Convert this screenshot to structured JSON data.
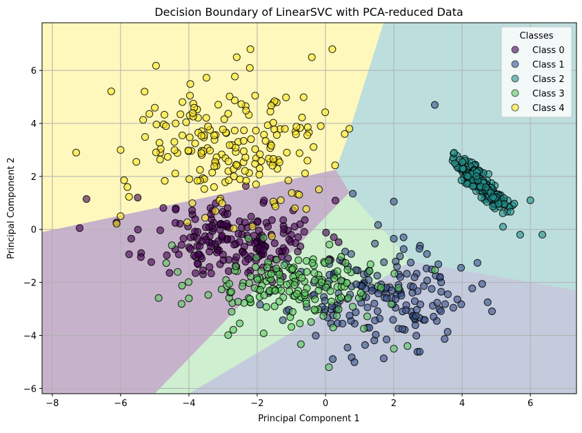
{
  "chart_data": {
    "type": "scatter",
    "title": "Decision Boundary of LinearSVC with PCA-reduced Data",
    "xlabel": "Principal Component 1",
    "ylabel": "Principal Component 2",
    "xlim": [
      -8.3,
      7.35
    ],
    "ylim": [
      -6.2,
      7.8
    ],
    "xticks": [
      -8,
      -6,
      -4,
      -2,
      0,
      2,
      4,
      6
    ],
    "yticks": [
      -6,
      -4,
      -2,
      0,
      2,
      4,
      6
    ],
    "grid": true,
    "legend": {
      "title": "Classes",
      "placement": "top-right",
      "entries": [
        "Class 0",
        "Class 1",
        "Class 2",
        "Class 3",
        "Class 4"
      ]
    },
    "colors": {
      "class_0": "#440154",
      "class_1": "#3b528b",
      "class_2": "#21918c",
      "class_3": "#5ec962",
      "class_4": "#fde725"
    },
    "regions": [
      {
        "class": "Class 0",
        "polygon": [
          [
            -8.3,
            -0.1
          ],
          [
            -8.3,
            -6.2
          ],
          [
            -5,
            -6.2
          ],
          [
            0.7,
            1.4
          ],
          [
            0.3,
            2.25
          ]
        ]
      },
      {
        "class": "Class 1",
        "polygon": [
          [
            -4,
            -6.2
          ],
          [
            2.5,
            -1.2
          ],
          [
            7.35,
            -2.3
          ],
          [
            7.35,
            -6.2
          ]
        ]
      },
      {
        "class": "Class 2",
        "polygon": [
          [
            1.7,
            7.8
          ],
          [
            7.35,
            7.8
          ],
          [
            7.35,
            -2.3
          ],
          [
            2.5,
            -1.2
          ],
          [
            0.7,
            1.4
          ],
          [
            0.3,
            2.25
          ],
          [
            0.6,
            3.3
          ]
        ]
      },
      {
        "class": "Class 3",
        "polygon": [
          [
            -5,
            -6.2
          ],
          [
            -4,
            -6.2
          ],
          [
            2.5,
            -1.2
          ],
          [
            0.7,
            1.4
          ]
        ]
      },
      {
        "class": "Class 4",
        "polygon": [
          [
            -8.3,
            7.8
          ],
          [
            1.7,
            7.8
          ],
          [
            0.6,
            3.3
          ],
          [
            0.3,
            2.25
          ],
          [
            -8.3,
            -0.1
          ]
        ]
      }
    ],
    "series": [
      {
        "name": "Class 0",
        "clusters": [
          {
            "cx": -2.6,
            "cy": -0.4,
            "sx": 1.25,
            "sy": 0.75,
            "n": 190,
            "seed": 11
          }
        ],
        "outliers": [
          [
            -7,
            1.15
          ],
          [
            -7.2,
            0.05
          ],
          [
            -5.5,
            1.2
          ]
        ]
      },
      {
        "name": "Class 1",
        "clusters": [
          {
            "cx": 1.6,
            "cy": -2.6,
            "sx": 1.3,
            "sy": 0.9,
            "n": 180,
            "seed": 23
          }
        ],
        "outliers": [
          [
            0.8,
            1.35
          ],
          [
            2.0,
            1.05
          ],
          [
            3.2,
            4.7
          ]
        ]
      },
      {
        "name": "Class 2",
        "clusters": [
          {
            "cx": 4.55,
            "cy": 1.75,
            "sx": 0.58,
            "sy": 0.16,
            "rot": -0.9,
            "n": 190,
            "seed": 37
          }
        ],
        "outliers": [
          [
            6.0,
            1.1
          ],
          [
            6.35,
            -0.2
          ],
          [
            5.7,
            -0.2
          ],
          [
            5.2,
            0.1
          ]
        ]
      },
      {
        "name": "Class 3",
        "clusters": [
          {
            "cx": -0.9,
            "cy": -2.2,
            "sx": 1.5,
            "sy": 0.75,
            "n": 170,
            "seed": 53
          }
        ],
        "outliers": [
          [
            2.0,
            -4.5
          ],
          [
            2.4,
            -4.4
          ],
          [
            0.1,
            -5.2
          ],
          [
            -4.0,
            -2.6
          ],
          [
            -4.5,
            -0.6
          ]
        ]
      },
      {
        "name": "Class 4",
        "clusters": [
          {
            "cx": -2.7,
            "cy": 3.0,
            "sx": 1.6,
            "sy": 1.35,
            "n": 190,
            "seed": 71
          }
        ],
        "outliers": [
          [
            -7.3,
            2.9
          ],
          [
            -6.0,
            3.0
          ],
          [
            -5.3,
            5.2
          ],
          [
            -2.2,
            6.8
          ],
          [
            0.2,
            6.8
          ],
          [
            -0.4,
            6.5
          ],
          [
            -2.6,
            6.5
          ],
          [
            0.7,
            3.8
          ],
          [
            -0.9,
            0.8
          ],
          [
            -6.0,
            0.5
          ],
          [
            -5.8,
            1.6
          ]
        ]
      }
    ]
  }
}
